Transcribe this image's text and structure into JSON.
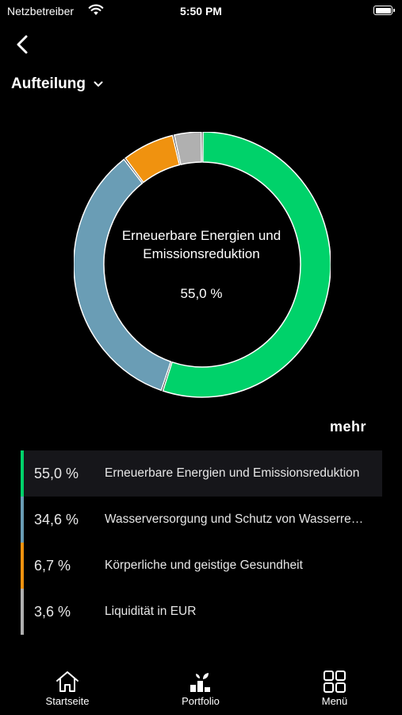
{
  "status_bar": {
    "carrier": "Netzbetreiber",
    "time": "5:50 PM"
  },
  "header": {
    "view_label": "Aufteilung"
  },
  "chart_data": {
    "type": "pie",
    "categories": [
      "Erneuerbare Energien und Emissionsreduktion",
      "Wasserversorgung und Schutz von Wasserressourcen",
      "Körperliche und geistige Gesundheit",
      "Liquidität in EUR"
    ],
    "values": [
      55.0,
      34.6,
      6.7,
      3.6
    ],
    "colors": [
      "#00d26a",
      "#6a9db5",
      "#f0920f",
      "#b0b0b0"
    ],
    "selected_index": 0
  },
  "center": {
    "title": "Erneuerbare Energien und Emissionsreduktion",
    "value": "55,0 %"
  },
  "more_label": "mehr",
  "legend": [
    {
      "percent": "55,0 %",
      "label": "Erneuerbare Energien und Emissionsreduktion",
      "color": "#00d26a"
    },
    {
      "percent": "34,6 %",
      "label": "Wasserversorgung und Schutz von Wasserressourcen",
      "color": "#6a9db5"
    },
    {
      "percent": "6,7 %",
      "label": "Körperliche und geistige Gesundheit",
      "color": "#f0920f"
    },
    {
      "percent": "3,6 %",
      "label": "Liquidität in EUR",
      "color": "#b0b0b0"
    }
  ],
  "tabs": [
    {
      "label": "Startseite",
      "icon": "home-icon"
    },
    {
      "label": "Portfolio",
      "icon": "portfolio-icon"
    },
    {
      "label": "Menü",
      "icon": "grid-menu-icon"
    }
  ]
}
